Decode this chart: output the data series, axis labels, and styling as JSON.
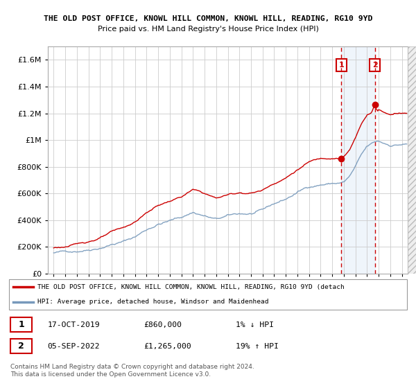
{
  "title": "THE OLD POST OFFICE, KNOWL HILL COMMON, KNOWL HILL, READING, RG10 9YD",
  "subtitle": "Price paid vs. HM Land Registry's House Price Index (HPI)",
  "ylim": [
    0,
    1700000
  ],
  "yticks": [
    0,
    200000,
    400000,
    600000,
    800000,
    1000000,
    1200000,
    1400000,
    1600000
  ],
  "ytick_labels": [
    "£0",
    "£200K",
    "£400K",
    "£600K",
    "£800K",
    "£1M",
    "£1.2M",
    "£1.4M",
    "£1.6M"
  ],
  "grid_color": "#cccccc",
  "sale1_date": "17-OCT-2019",
  "sale1_price": 860000,
  "sale1_price_fmt": "£860,000",
  "sale1_hpi": "1% ↓ HPI",
  "sale2_date": "05-SEP-2022",
  "sale2_price": 1265000,
  "sale2_price_fmt": "£1,265,000",
  "sale2_hpi": "19% ↑ HPI",
  "legend_red": "THE OLD POST OFFICE, KNOWL HILL COMMON, KNOWL HILL, READING, RG10 9YD (detach",
  "legend_blue": "HPI: Average price, detached house, Windsor and Maidenhead",
  "footnote": "Contains HM Land Registry data © Crown copyright and database right 2024.\nThis data is licensed under the Open Government Licence v3.0.",
  "red_line_color": "#cc0000",
  "blue_line_color": "#7799bb",
  "highlight_bg_color": "#ddeeff",
  "sale1_year": 2019.79,
  "sale2_year": 2022.67
}
